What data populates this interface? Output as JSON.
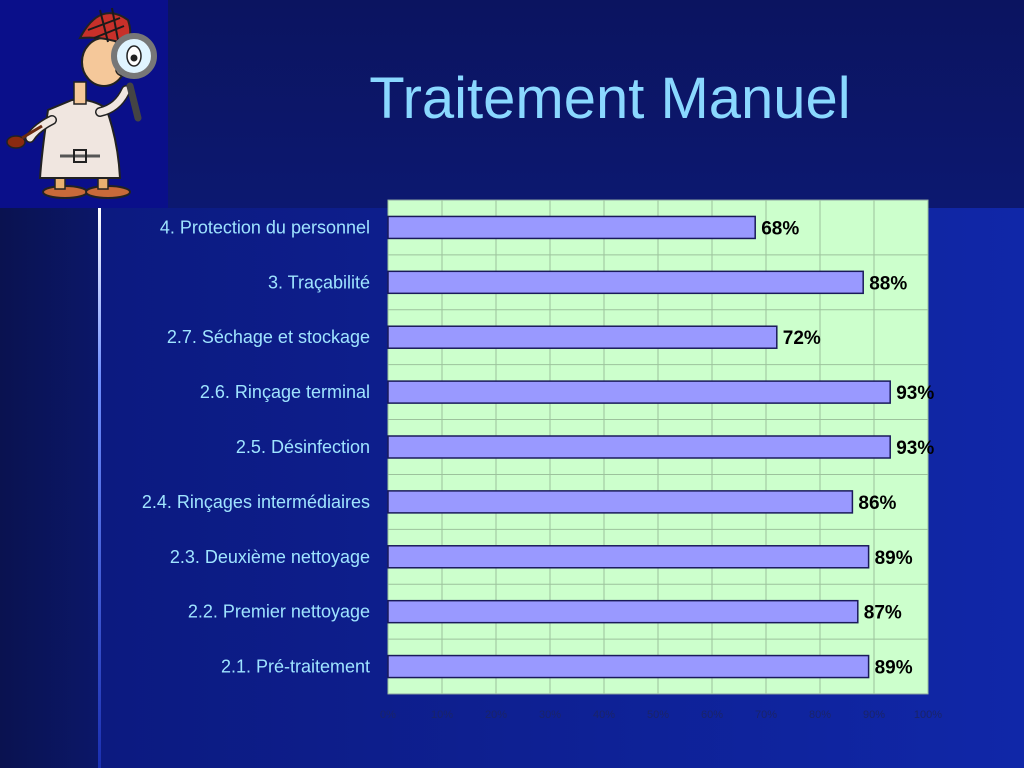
{
  "slide": {
    "title": "Traitement Manuel",
    "colors": {
      "title": "#8ad8ff",
      "plot_bg": "#ccffcc",
      "bar_fill": "#9999ff",
      "bar_stroke": "#1a1a5a"
    },
    "clip_art": "detective-with-magnifying-glass-icon"
  },
  "chart_data": {
    "type": "bar",
    "orientation": "horizontal",
    "categories": [
      "4. Protection du personnel",
      "3. Traçabilité",
      "2.7. Séchage et stockage",
      "2.6. Rinçage terminal",
      "2.5. Désinfection",
      "2.4. Rinçages intermédiaires",
      "2.3. Deuxième nettoyage",
      "2.2. Premier nettoyage",
      "2.1. Pré-traitement"
    ],
    "values": [
      68,
      88,
      72,
      93,
      93,
      86,
      89,
      87,
      89
    ],
    "value_labels": [
      "68%",
      "88%",
      "72%",
      "93%",
      "93%",
      "86%",
      "89%",
      "87%",
      "89%"
    ],
    "x_ticks": [
      "0%",
      "10%",
      "20%",
      "30%",
      "40%",
      "50%",
      "60%",
      "70%",
      "80%",
      "90%",
      "100%"
    ],
    "xlim": [
      0,
      100
    ],
    "grid": true,
    "legend": "none"
  }
}
